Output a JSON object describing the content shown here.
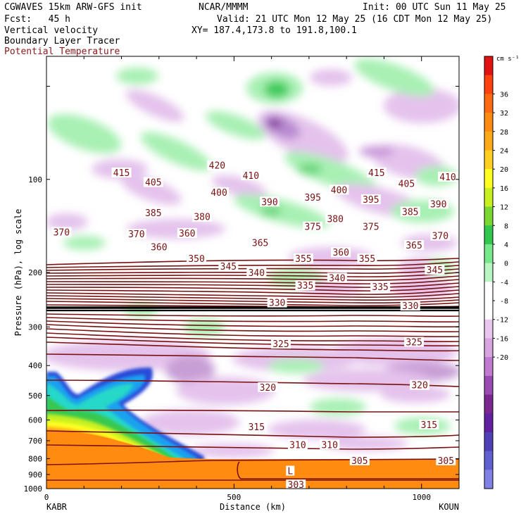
{
  "header": {
    "model": "CGWAVES 15km ARW-GFS init",
    "org": "NCAR/MMMM",
    "init": "Init: 00 UTC Sun 11 May 25",
    "fcst": "Fcst:   45 h",
    "valid": "Valid: 21 UTC Mon 12 May 25 (16 CDT Mon 12 May 25)",
    "field1": "Vertical velocity",
    "xy": "XY= 187.4,173.8 to 191.8,100.1",
    "field2": "Boundary Layer Tracer",
    "field3": "Potential Temperature"
  },
  "chart_data": {
    "type": "heatmap",
    "title": "Vertical cross-section: vertical velocity, boundary layer tracer, potential temperature",
    "xlabel": "Distance (km)",
    "ylabel": "Pressure (hPa), log scale",
    "xlim": [
      0,
      1100
    ],
    "ylim": [
      1000,
      40
    ],
    "x_ticks": [
      0,
      500,
      1000
    ],
    "y_ticks": [
      100,
      200,
      300,
      400,
      500,
      600,
      700,
      800,
      900,
      1000
    ],
    "left_endpoint": "KABR",
    "right_endpoint": "KOUN",
    "colorbar": {
      "unit": "cm s⁻¹",
      "labels": [
        36,
        32,
        28,
        24,
        20,
        16,
        12,
        8,
        4,
        0,
        -4,
        -8,
        -12,
        -16,
        -20
      ],
      "colors": [
        "#e21212",
        "#ff4010",
        "#ff6a10",
        "#ff8a10",
        "#ffa818",
        "#ffd020",
        "#ffff20",
        "#c8f020",
        "#7ad632",
        "#32c850",
        "#78e88c",
        "#b8f5c0",
        "#ffffff",
        "#ffffff",
        "#e8c6ee",
        "#d8a4e0",
        "#c07ad0",
        "#9a4cb4",
        "#7a2890",
        "#6020a0",
        "#5040b8",
        "#6060d0",
        "#8080e6"
      ]
    },
    "isentrope_labels": [
      {
        "x": 200,
        "p": 95,
        "value": "415"
      },
      {
        "x": 455,
        "p": 90,
        "value": "420"
      },
      {
        "x": 545,
        "p": 97,
        "value": "410"
      },
      {
        "x": 880,
        "p": 95,
        "value": "415"
      },
      {
        "x": 1070,
        "p": 98,
        "value": "410"
      },
      {
        "x": 285,
        "p": 102,
        "value": "405"
      },
      {
        "x": 460,
        "p": 110,
        "value": "400"
      },
      {
        "x": 780,
        "p": 108,
        "value": "400"
      },
      {
        "x": 960,
        "p": 103,
        "value": "405"
      },
      {
        "x": 595,
        "p": 118,
        "value": "390"
      },
      {
        "x": 710,
        "p": 114,
        "value": "395"
      },
      {
        "x": 865,
        "p": 116,
        "value": "395"
      },
      {
        "x": 1045,
        "p": 120,
        "value": "390"
      },
      {
        "x": 285,
        "p": 128,
        "value": "385"
      },
      {
        "x": 415,
        "p": 132,
        "value": "380"
      },
      {
        "x": 770,
        "p": 134,
        "value": "380"
      },
      {
        "x": 970,
        "p": 127,
        "value": "385"
      },
      {
        "x": 710,
        "p": 142,
        "value": "375"
      },
      {
        "x": 865,
        "p": 142,
        "value": "375"
      },
      {
        "x": 40,
        "p": 148,
        "value": "370"
      },
      {
        "x": 1050,
        "p": 152,
        "value": "370"
      },
      {
        "x": 240,
        "p": 150,
        "value": "370"
      },
      {
        "x": 375,
        "p": 149,
        "value": "360"
      },
      {
        "x": 300,
        "p": 165,
        "value": "360"
      },
      {
        "x": 570,
        "p": 160,
        "value": "365"
      },
      {
        "x": 980,
        "p": 163,
        "value": "365"
      },
      {
        "x": 785,
        "p": 172,
        "value": "360"
      },
      {
        "x": 685,
        "p": 180,
        "value": "355"
      },
      {
        "x": 855,
        "p": 180,
        "value": "355"
      },
      {
        "x": 400,
        "p": 180,
        "value": "350"
      },
      {
        "x": 485,
        "p": 191,
        "value": "345"
      },
      {
        "x": 1035,
        "p": 196,
        "value": "345"
      },
      {
        "x": 560,
        "p": 200,
        "value": "340"
      },
      {
        "x": 775,
        "p": 208,
        "value": "340"
      },
      {
        "x": 690,
        "p": 220,
        "value": "335"
      },
      {
        "x": 890,
        "p": 222,
        "value": "335"
      },
      {
        "x": 615,
        "p": 250,
        "value": "330"
      },
      {
        "x": 970,
        "p": 256,
        "value": "330"
      },
      {
        "x": 625,
        "p": 340,
        "value": "325"
      },
      {
        "x": 980,
        "p": 335,
        "value": "325"
      },
      {
        "x": 590,
        "p": 470,
        "value": "320"
      },
      {
        "x": 995,
        "p": 462,
        "value": "320"
      },
      {
        "x": 560,
        "p": 630,
        "value": "315"
      },
      {
        "x": 1020,
        "p": 620,
        "value": "315"
      },
      {
        "x": 670,
        "p": 720,
        "value": "310"
      },
      {
        "x": 755,
        "p": 720,
        "value": "310"
      },
      {
        "x": 835,
        "p": 810,
        "value": "305"
      },
      {
        "x": 1065,
        "p": 810,
        "value": "305"
      },
      {
        "x": 665,
        "p": 970,
        "value": "303"
      },
      {
        "x": 650,
        "p": 875,
        "value": "L"
      }
    ]
  }
}
